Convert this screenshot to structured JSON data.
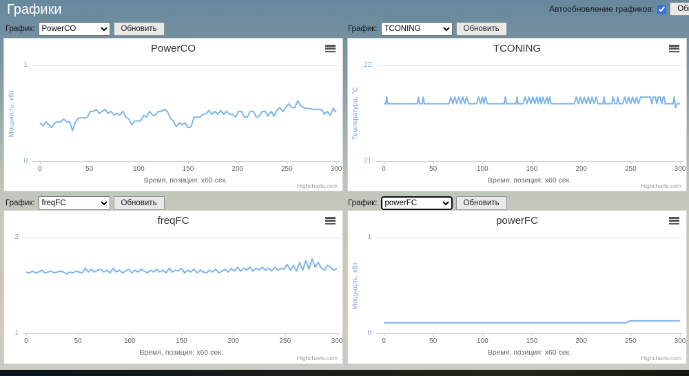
{
  "page": {
    "title": "Графики"
  },
  "header": {
    "auto_refresh_label": "Автообновление графиков:",
    "auto_refresh_checked": true,
    "refresh_all_label": "Обновить все"
  },
  "controls": {
    "select_label": "График:",
    "refresh_label": "Обновить"
  },
  "colors": {
    "series": "#7cb5ec",
    "grid": "#e6e6e6",
    "axis_line": "#ccd1d9",
    "y_label": "#7aa6d9",
    "x_label": "#666666",
    "title": "#333333",
    "checkbox_accent": "#2e6fe0",
    "header_bg": "#67889d",
    "panel_bg": "#ffffff"
  },
  "charts": [
    {
      "select_value": "PowerCO",
      "title": "PowerCO",
      "y_axis_title": "Мощность, кВт",
      "y_max_label": "1",
      "y_min_label": "0",
      "x_ticks": [
        0,
        50,
        100,
        150,
        200,
        250,
        300
      ],
      "x_axis_title": "Время, позиция: x60 сек.",
      "credits": "Highcharts.com",
      "chart_data": {
        "type": "line",
        "xlim": [
          0,
          300
        ],
        "ylim": [
          0,
          1
        ],
        "x_start": 0,
        "x_step": 3,
        "values": [
          0.4,
          0.37,
          0.41,
          0.38,
          0.35,
          0.4,
          0.41,
          0.41,
          0.44,
          0.41,
          0.41,
          0.32,
          0.41,
          0.45,
          0.45,
          0.45,
          0.46,
          0.52,
          0.52,
          0.54,
          0.5,
          0.52,
          0.54,
          0.5,
          0.52,
          0.48,
          0.5,
          0.48,
          0.52,
          0.46,
          0.44,
          0.38,
          0.42,
          0.42,
          0.42,
          0.48,
          0.46,
          0.52,
          0.48,
          0.48,
          0.52,
          0.52,
          0.54,
          0.52,
          0.45,
          0.42,
          0.36,
          0.4,
          0.38,
          0.4,
          0.35,
          0.36,
          0.46,
          0.46,
          0.46,
          0.49,
          0.49,
          0.53,
          0.49,
          0.52,
          0.49,
          0.53,
          0.49,
          0.52,
          0.49,
          0.49,
          0.46,
          0.52,
          0.52,
          0.46,
          0.46,
          0.52,
          0.52,
          0.46,
          0.47,
          0.52,
          0.52,
          0.47,
          0.52,
          0.47,
          0.53,
          0.56,
          0.52,
          0.56,
          0.6,
          0.56,
          0.56,
          0.63,
          0.58,
          0.56,
          0.55,
          0.55,
          0.54,
          0.54,
          0.54,
          0.54,
          0.49,
          0.52,
          0.48,
          0.55,
          0.51
        ]
      }
    },
    {
      "select_value": "TCONING",
      "title": "TCONING",
      "y_axis_title": "Температура, °C",
      "y_max_label": "22",
      "y_min_label": "21",
      "x_ticks": [
        0,
        50,
        100,
        150,
        200,
        250,
        300
      ],
      "x_axis_title": "Время, позиция: x60 сек.",
      "credits": "Highcharts.com",
      "chart_data": {
        "type": "line",
        "xlim": [
          0,
          300
        ],
        "ylim": [
          21,
          22
        ],
        "points": [
          [
            0,
            21.6
          ],
          [
            2,
            21.6
          ],
          [
            3,
            21.67
          ],
          [
            4,
            21.6
          ],
          [
            34,
            21.6
          ],
          [
            35,
            21.67
          ],
          [
            36,
            21.6
          ],
          [
            39,
            21.6
          ],
          [
            40,
            21.67
          ],
          [
            41,
            21.6
          ],
          [
            66,
            21.6
          ],
          [
            68,
            21.67
          ],
          [
            70,
            21.6
          ],
          [
            72,
            21.67
          ],
          [
            74,
            21.6
          ],
          [
            76,
            21.67
          ],
          [
            78,
            21.6
          ],
          [
            80,
            21.67
          ],
          [
            82,
            21.6
          ],
          [
            84,
            21.67
          ],
          [
            86,
            21.6
          ],
          [
            94,
            21.6
          ],
          [
            96,
            21.67
          ],
          [
            98,
            21.6
          ],
          [
            100,
            21.67
          ],
          [
            101.5,
            21.6
          ],
          [
            103,
            21.67
          ],
          [
            105,
            21.6
          ],
          [
            122,
            21.6
          ],
          [
            123,
            21.67
          ],
          [
            124,
            21.6
          ],
          [
            134,
            21.6
          ],
          [
            135,
            21.67
          ],
          [
            136,
            21.6
          ],
          [
            141,
            21.6
          ],
          [
            143,
            21.67
          ],
          [
            145,
            21.6
          ],
          [
            147,
            21.67
          ],
          [
            149,
            21.6
          ],
          [
            151,
            21.67
          ],
          [
            153,
            21.6
          ],
          [
            155,
            21.67
          ],
          [
            156.5,
            21.6
          ],
          [
            158,
            21.67
          ],
          [
            159.5,
            21.6
          ],
          [
            161,
            21.67
          ],
          [
            163,
            21.6
          ],
          [
            165,
            21.67
          ],
          [
            166.5,
            21.6
          ],
          [
            168,
            21.67
          ],
          [
            169.5,
            21.6
          ],
          [
            193,
            21.6
          ],
          [
            195,
            21.67
          ],
          [
            197,
            21.6
          ],
          [
            199,
            21.67
          ],
          [
            201,
            21.6
          ],
          [
            203,
            21.67
          ],
          [
            205,
            21.6
          ],
          [
            207,
            21.67
          ],
          [
            209,
            21.6
          ],
          [
            211,
            21.67
          ],
          [
            213,
            21.6
          ],
          [
            215,
            21.67
          ],
          [
            217,
            21.6
          ],
          [
            222,
            21.6
          ],
          [
            223,
            21.67
          ],
          [
            224,
            21.6
          ],
          [
            231,
            21.6
          ],
          [
            232,
            21.67
          ],
          [
            234,
            21.6
          ],
          [
            236,
            21.6
          ],
          [
            237,
            21.67
          ],
          [
            238.5,
            21.6
          ],
          [
            242,
            21.6
          ],
          [
            244,
            21.67
          ],
          [
            246,
            21.6
          ],
          [
            248,
            21.67
          ],
          [
            250,
            21.6
          ],
          [
            252,
            21.67
          ],
          [
            254,
            21.6
          ],
          [
            256,
            21.67
          ],
          [
            258,
            21.6
          ],
          [
            260,
            21.67
          ],
          [
            262,
            21.67
          ],
          [
            270,
            21.67
          ],
          [
            271.5,
            21.6
          ],
          [
            273,
            21.67
          ],
          [
            275,
            21.67
          ],
          [
            276.5,
            21.6
          ],
          [
            278,
            21.67
          ],
          [
            280,
            21.67
          ],
          [
            281.5,
            21.6
          ],
          [
            283,
            21.67
          ],
          [
            284,
            21.67
          ],
          [
            285,
            21.6
          ],
          [
            293,
            21.6
          ],
          [
            294,
            21.67
          ],
          [
            295.5,
            21.56
          ],
          [
            297,
            21.6
          ],
          [
            300,
            21.6
          ]
        ]
      }
    },
    {
      "select_value": "freqFC",
      "title": "freqFC",
      "y_axis_title": "",
      "y_max_label": "2",
      "y_min_label": "1",
      "x_ticks": [
        0,
        50,
        100,
        150,
        200,
        250,
        300
      ],
      "x_axis_title": "Время, позиция: x60 сек.",
      "credits": "Highcharts.com",
      "chart_data": {
        "type": "line",
        "xlim": [
          0,
          300
        ],
        "ylim": [
          1,
          2
        ],
        "x_start": 0,
        "x_step": 3,
        "values": [
          1.64,
          1.63,
          1.65,
          1.63,
          1.64,
          1.66,
          1.63,
          1.64,
          1.65,
          1.63,
          1.64,
          1.65,
          1.64,
          1.62,
          1.64,
          1.63,
          1.65,
          1.64,
          1.63,
          1.68,
          1.64,
          1.67,
          1.64,
          1.66,
          1.67,
          1.64,
          1.66,
          1.63,
          1.68,
          1.64,
          1.66,
          1.63,
          1.65,
          1.67,
          1.63,
          1.66,
          1.64,
          1.67,
          1.65,
          1.63,
          1.66,
          1.64,
          1.67,
          1.64,
          1.66,
          1.63,
          1.68,
          1.64,
          1.66,
          1.65,
          1.68,
          1.63,
          1.66,
          1.64,
          1.67,
          1.63,
          1.66,
          1.64,
          1.63,
          1.66,
          1.64,
          1.67,
          1.63,
          1.65,
          1.67,
          1.64,
          1.68,
          1.65,
          1.69,
          1.65,
          1.68,
          1.66,
          1.69,
          1.65,
          1.68,
          1.66,
          1.69,
          1.66,
          1.68,
          1.65,
          1.69,
          1.66,
          1.68,
          1.67,
          1.72,
          1.66,
          1.71,
          1.65,
          1.74,
          1.66,
          1.76,
          1.67,
          1.78,
          1.69,
          1.74,
          1.68,
          1.66,
          1.71,
          1.69,
          1.66,
          1.68
        ]
      }
    },
    {
      "select_value": "powerFC",
      "title": "powerFC",
      "y_axis_title": "Мощность, кВт",
      "y_max_label": "1",
      "y_min_label": "0",
      "x_ticks": [
        0,
        50,
        100,
        150,
        200,
        250,
        300
      ],
      "x_axis_title": "Время, позиция: x60 сек.",
      "credits": "Highcharts.com",
      "select_focused": true,
      "chart_data": {
        "type": "line",
        "xlim": [
          0,
          300
        ],
        "ylim": [
          0,
          1
        ],
        "points": [
          [
            0,
            0.11
          ],
          [
            246,
            0.11
          ],
          [
            249,
            0.13
          ],
          [
            300,
            0.13
          ]
        ]
      }
    }
  ]
}
